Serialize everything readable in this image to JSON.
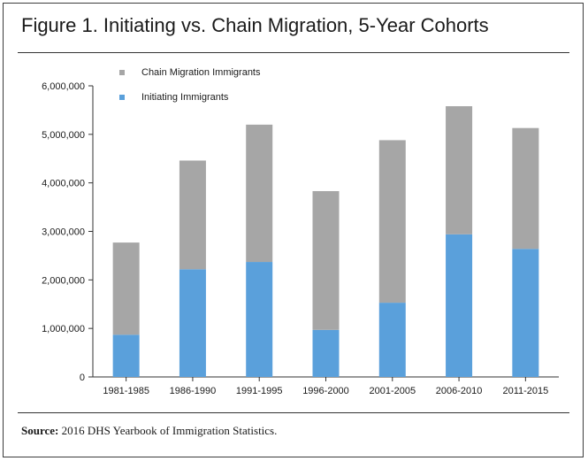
{
  "title": "Figure 1. Initiating vs. Chain Migration, 5-Year Cohorts",
  "source": {
    "label": "Source:",
    "text": "2016 DHS Yearbook of Immigration Statistics."
  },
  "colors": {
    "chain": "#a6a6a6",
    "initiating": "#5aa0db"
  },
  "chart_data": {
    "type": "bar",
    "stacked": true,
    "categories": [
      "1981-1985",
      "1986-1990",
      "1991-1995",
      "1996-2000",
      "2001-2005",
      "2006-2010",
      "2011-2015"
    ],
    "series": [
      {
        "name": "Initiating Immigrants",
        "values": [
          870000,
          2220000,
          2370000,
          970000,
          1530000,
          2940000,
          2640000
        ]
      },
      {
        "name": "Chain Migration Immigrants",
        "values": [
          1900000,
          2240000,
          2830000,
          2860000,
          3350000,
          2640000,
          2490000
        ]
      }
    ],
    "ylim": [
      0,
      6000000
    ],
    "yticks": [
      "0",
      "1,000,000",
      "2,000,000",
      "3,000,000",
      "4,000,000",
      "5,000,000",
      "6,000,000"
    ],
    "ytick_values": [
      0,
      1000000,
      2000000,
      3000000,
      4000000,
      5000000,
      6000000
    ],
    "legend": [
      "Chain Migration Immigrants",
      "Initiating Immigrants"
    ],
    "legend_position": "top-left",
    "grid": false
  }
}
